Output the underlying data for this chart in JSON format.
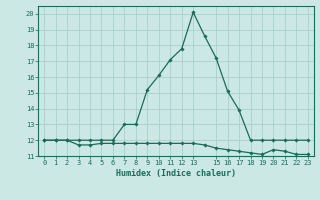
{
  "title": "",
  "xlabel": "Humidex (Indice chaleur)",
  "bg_color": "#cce8e4",
  "grid_color": "#aacfcb",
  "line_color": "#1a6b5a",
  "x_data": [
    0,
    1,
    2,
    3,
    4,
    5,
    6,
    7,
    8,
    9,
    10,
    11,
    12,
    13,
    14,
    15,
    16,
    17,
    18,
    19,
    20,
    21,
    22,
    23
  ],
  "y_upper": [
    12,
    12,
    12,
    12,
    12,
    12,
    12,
    13,
    13,
    15.2,
    16.1,
    17.1,
    17.8,
    20.1,
    18.6,
    17.2,
    15.1,
    13.9,
    12,
    12,
    12,
    12,
    12,
    12
  ],
  "y_lower": [
    12,
    12,
    12,
    11.7,
    11.7,
    11.8,
    11.8,
    11.8,
    11.8,
    11.8,
    11.8,
    11.8,
    11.8,
    11.8,
    11.7,
    11.5,
    11.4,
    11.3,
    11.2,
    11.1,
    11.4,
    11.3,
    11.1,
    11.1
  ],
  "ylim": [
    11,
    20.5
  ],
  "xlim": [
    -0.5,
    23.5
  ],
  "yticks": [
    11,
    12,
    13,
    14,
    15,
    16,
    17,
    18,
    19,
    20
  ],
  "xtick_positions": [
    0,
    1,
    2,
    3,
    4,
    5,
    6,
    7,
    8,
    9,
    10,
    11,
    12,
    13,
    15,
    16,
    17,
    18,
    19,
    20,
    21,
    22,
    23
  ],
  "xtick_labels": [
    "0",
    "1",
    "2",
    "3",
    "4",
    "5",
    "6",
    "7",
    "8",
    "9",
    "10",
    "11",
    "12",
    "13",
    "15",
    "16",
    "17",
    "18",
    "19",
    "20",
    "21",
    "22",
    "23"
  ]
}
